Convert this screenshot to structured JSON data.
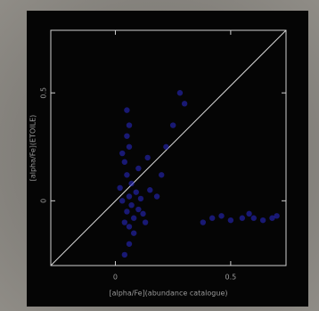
{
  "chart_data": {
    "type": "scatter",
    "xlabel": "[alpha/Fe](abundance catalogue)",
    "ylabel": "[alpha/Fe](ETOILE)",
    "xlim": [
      -0.28,
      0.74
    ],
    "ylim": [
      -0.3,
      0.79
    ],
    "xticks": [
      0,
      0.5
    ],
    "yticks": [
      0,
      0.5
    ],
    "series": [
      {
        "color": "#2a2ad0",
        "x": [
          0.05,
          0.07,
          0.08,
          0.06,
          0.1,
          0.04,
          0.09,
          0.12,
          0.03,
          0.11,
          0.06,
          0.08,
          0.02,
          0.13,
          0.07,
          0.05,
          0.04,
          0.06,
          0.05,
          0.06,
          0.05,
          0.03,
          0.1,
          0.15,
          0.18,
          0.2,
          0.14,
          0.22,
          0.28,
          0.3,
          0.25,
          0.06,
          0.04,
          0.42,
          0.46,
          0.5,
          0.55,
          0.6,
          0.64,
          0.68,
          0.7,
          0.38,
          0.58
        ],
        "y": [
          -0.05,
          -0.02,
          -0.08,
          0.02,
          -0.04,
          -0.1,
          0.04,
          -0.06,
          0.0,
          0.01,
          -0.12,
          -0.15,
          0.06,
          -0.1,
          0.08,
          0.12,
          0.18,
          0.25,
          0.3,
          0.35,
          0.42,
          0.22,
          0.15,
          0.05,
          0.02,
          0.12,
          0.2,
          0.25,
          0.5,
          0.45,
          0.35,
          -0.2,
          -0.25,
          -0.08,
          -0.07,
          -0.09,
          -0.08,
          -0.08,
          -0.09,
          -0.08,
          -0.07,
          -0.1,
          -0.06
        ]
      }
    ]
  }
}
